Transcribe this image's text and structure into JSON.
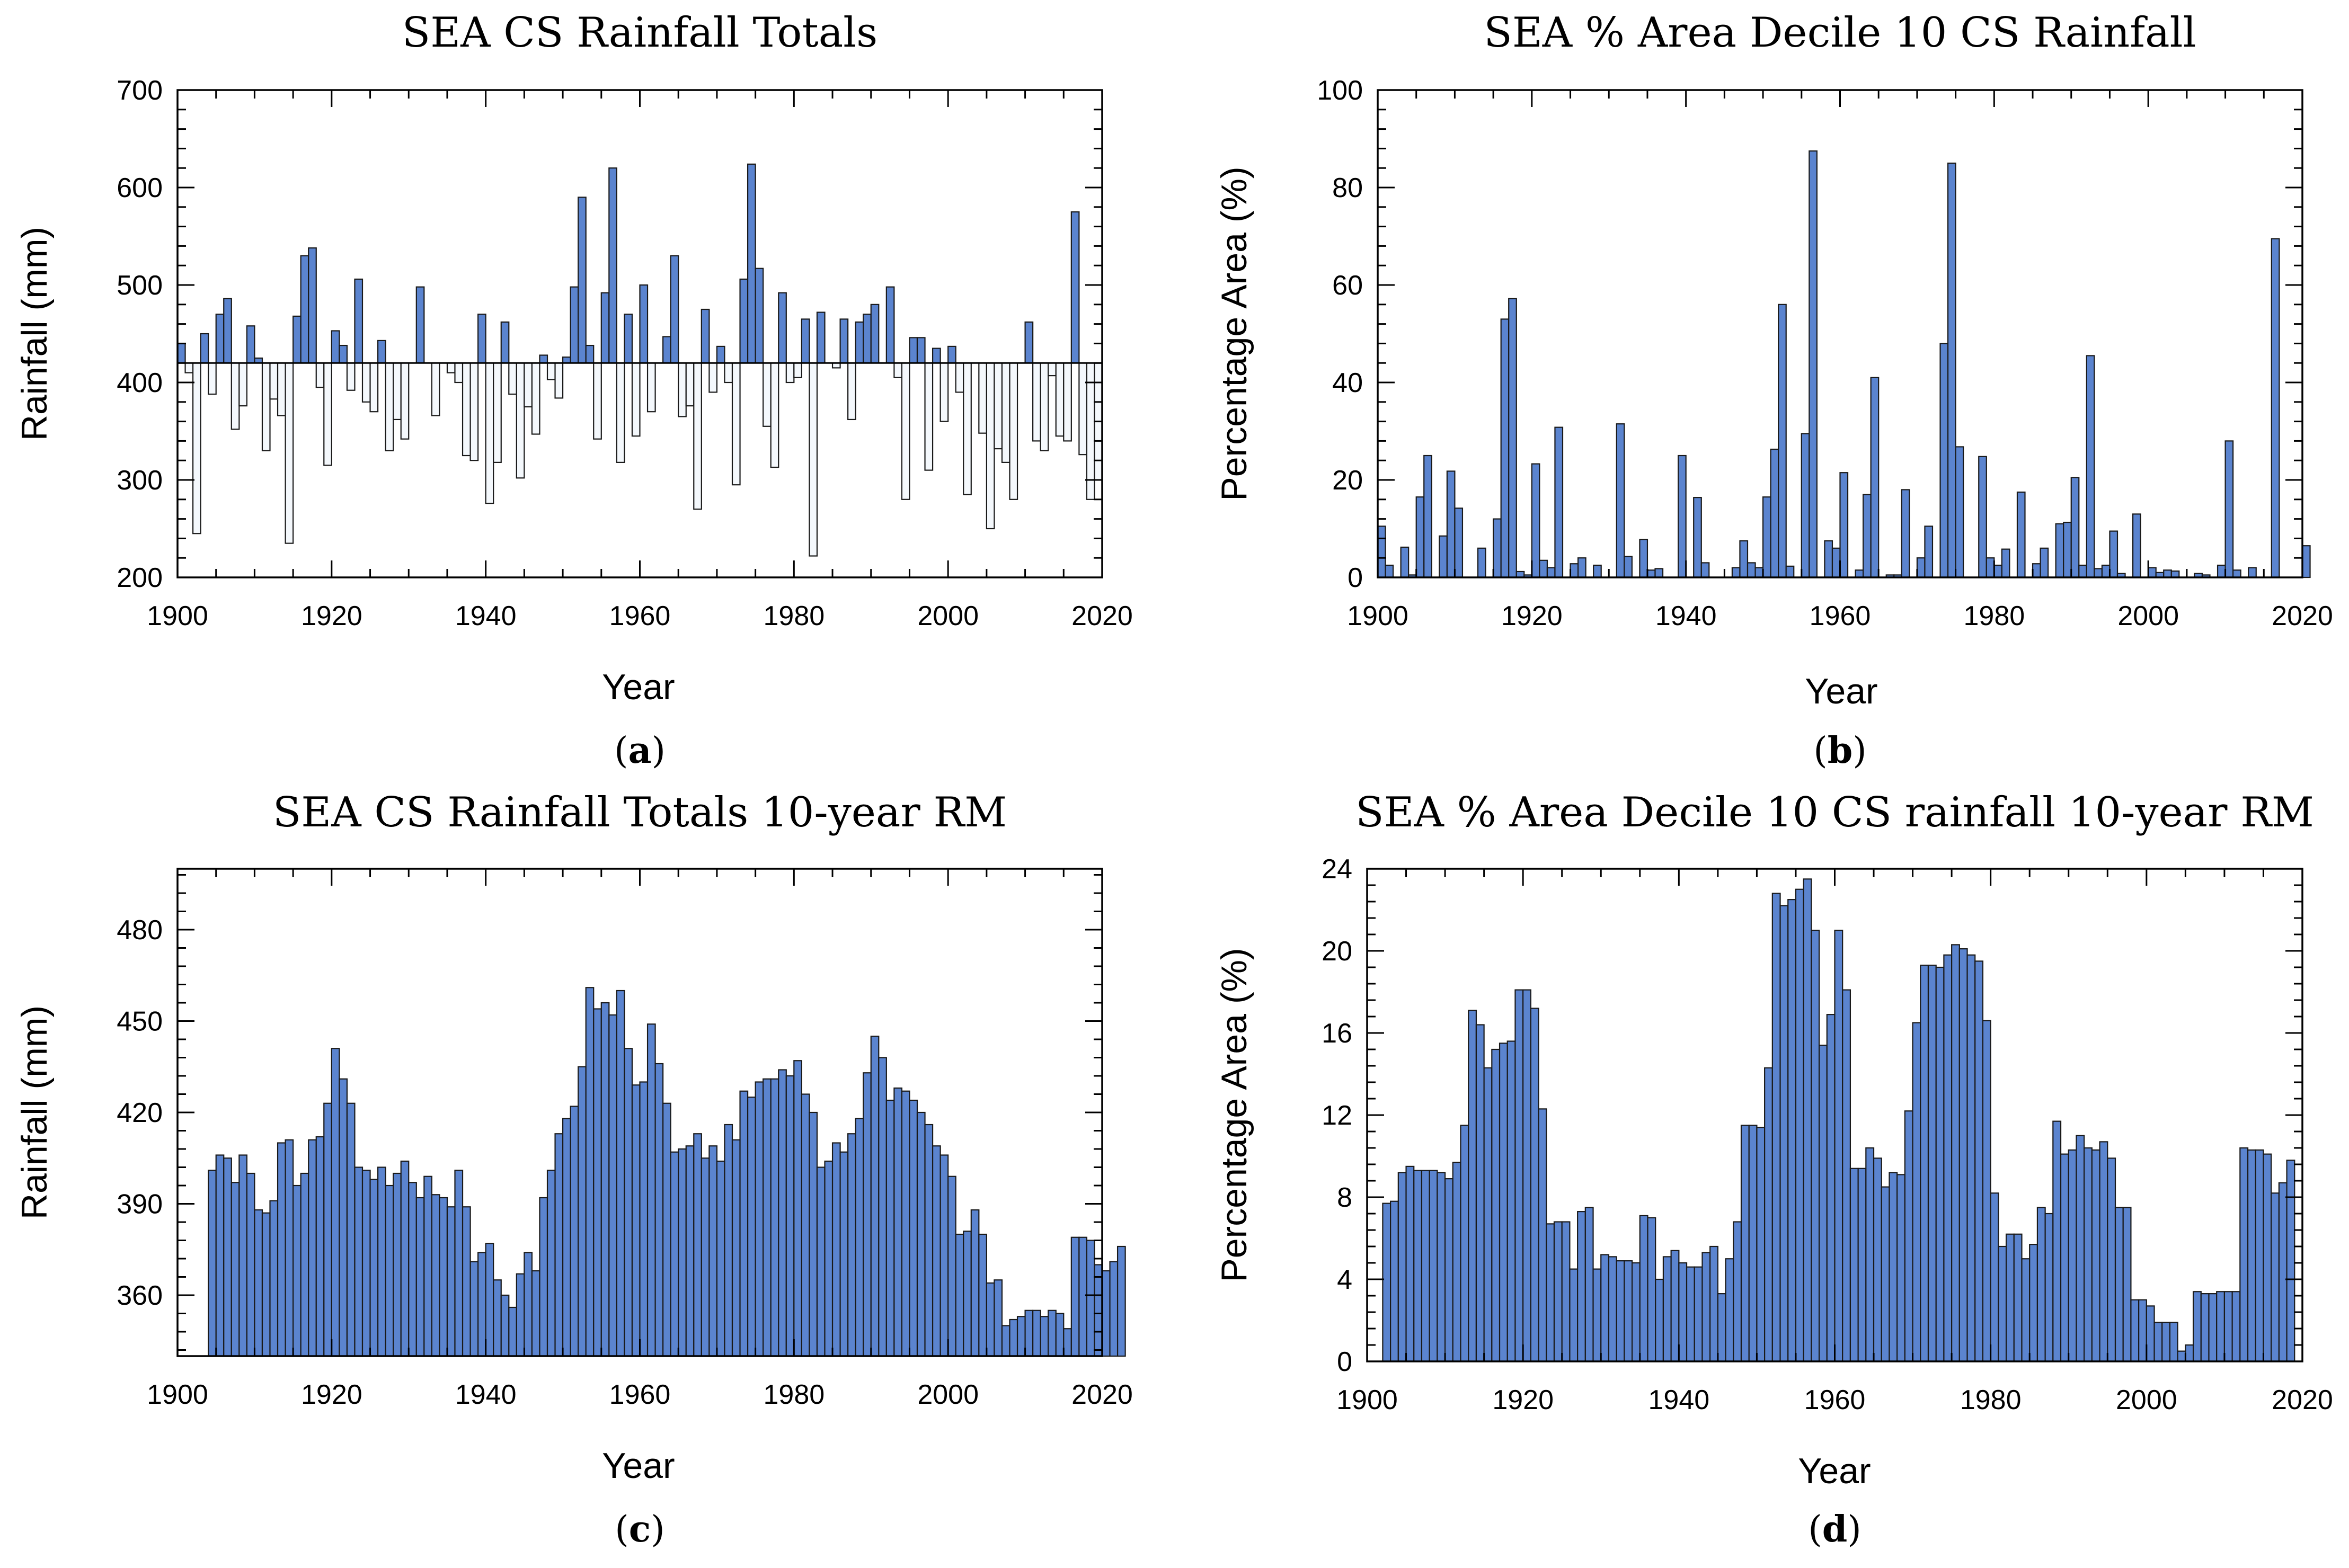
{
  "chart_data": [
    {
      "type": "bar",
      "title": "SEA CS Rainfall Totals",
      "xlabel": "Year",
      "ylabel": "Rainfall (mm)",
      "panel_label": "a",
      "xlim": [
        1900,
        2020
      ],
      "ylim": [
        200,
        700
      ],
      "xticks": [
        "1900",
        "1920",
        "1940",
        "1960",
        "1980",
        "2000",
        "2020"
      ],
      "yticks": [
        "200",
        "300",
        "400",
        "500",
        "600",
        "700"
      ],
      "baseline": 420,
      "above_color": "#5B84CF",
      "below_color": "#F4F8FC",
      "x_start": 1900,
      "values": [
        440,
        410,
        245,
        450,
        388,
        470,
        486,
        352,
        376,
        458,
        425,
        330,
        383,
        366,
        235,
        468,
        530,
        538,
        395,
        315,
        453,
        438,
        392,
        506,
        380,
        370,
        443,
        330,
        362,
        342,
        420,
        498,
        420,
        366,
        420,
        410,
        400,
        325,
        320,
        470,
        276,
        318,
        462,
        388,
        302,
        375,
        347,
        428,
        403,
        384,
        426,
        498,
        590,
        438,
        342,
        492,
        620,
        318,
        470,
        345,
        500,
        370,
        420,
        447,
        530,
        365,
        376,
        270,
        475,
        390,
        437,
        400,
        295,
        506,
        624,
        517,
        355,
        313,
        492,
        400,
        405,
        465,
        222,
        472,
        420,
        415,
        465,
        362,
        462,
        470,
        480,
        420,
        498,
        405,
        280,
        446,
        446,
        310,
        435,
        360,
        437,
        390,
        285,
        420,
        348,
        250,
        332,
        318,
        280,
        420,
        462,
        340,
        330,
        407,
        345,
        340,
        575,
        326,
        280,
        300
      ]
    },
    {
      "type": "bar",
      "title": "SEA % Area Decile 10 CS Rainfall",
      "xlabel": "Year",
      "ylabel": "Percentage Area (%)",
      "panel_label": "b",
      "xlim": [
        1900,
        2020
      ],
      "ylim": [
        0,
        100
      ],
      "xticks": [
        "1900",
        "1920",
        "1940",
        "1960",
        "1980",
        "2000",
        "2020"
      ],
      "yticks": [
        "0",
        "20",
        "40",
        "60",
        "80",
        "100"
      ],
      "bar_color": "#5B84CF",
      "x_start": 1900,
      "values": [
        10.5,
        2.5,
        0,
        6.2,
        0.5,
        16.5,
        25,
        0,
        8.5,
        21.8,
        14.2,
        0,
        0,
        6,
        0,
        12,
        53,
        57.2,
        1.2,
        0.5,
        23.3,
        3.5,
        2,
        30.8,
        0,
        2.8,
        4,
        0,
        2.5,
        0,
        0,
        31.5,
        4.3,
        0,
        7.8,
        1.5,
        1.8,
        0,
        0,
        25,
        0,
        16.4,
        3,
        0,
        0,
        0,
        2,
        7.5,
        3,
        2,
        16.5,
        26.3,
        56,
        2.3,
        0,
        29.5,
        87.5,
        0,
        7.5,
        6,
        21.5,
        0,
        1.5,
        17,
        41,
        0,
        0.5,
        0.5,
        18,
        0,
        4,
        10.5,
        0,
        48,
        85,
        26.8,
        0,
        0,
        24.8,
        4,
        2.5,
        5.8,
        0,
        17.5,
        0,
        2.8,
        6,
        0,
        11,
        11.3,
        20.5,
        2.5,
        45.5,
        1.8,
        2.5,
        9.5,
        0.8,
        0,
        13,
        0,
        2,
        1,
        1.5,
        1.3,
        0,
        0,
        0.8,
        0.5,
        0,
        2.5,
        28,
        1.5,
        0,
        2,
        0,
        0,
        69.5,
        0,
        0,
        0,
        6.5
      ]
    },
    {
      "type": "bar",
      "title": "SEA CS Rainfall Totals 10-year RM",
      "xlabel": "Year",
      "ylabel": "Rainfall (mm)",
      "panel_label": "c",
      "xlim": [
        1900,
        2020
      ],
      "ylim": [
        340,
        500
      ],
      "xticks": [
        "1900",
        "1920",
        "1940",
        "1960",
        "1980",
        "2000",
        "2020"
      ],
      "yticks": [
        "360",
        "390",
        "420",
        "450",
        "480"
      ],
      "bar_color": "#5B84CF",
      "x_start": 1904,
      "values": [
        401,
        406,
        405,
        397,
        406,
        400,
        388,
        387,
        391,
        410,
        411,
        396,
        400,
        411,
        412,
        423,
        441,
        431,
        423,
        402,
        401,
        398,
        402,
        396,
        400,
        404,
        397,
        392,
        399,
        393,
        392,
        389,
        401,
        389,
        371,
        374,
        377,
        365,
        360,
        356,
        367,
        374,
        368,
        392,
        401,
        413,
        418,
        422,
        435,
        461,
        454,
        456,
        452,
        460,
        441,
        429,
        430,
        449,
        436,
        423,
        407,
        408,
        409,
        413,
        405,
        409,
        404,
        416,
        411,
        427,
        425,
        430,
        431,
        431,
        434,
        432,
        437,
        426,
        420,
        402,
        404,
        410,
        407,
        413,
        418,
        433,
        445,
        438,
        424,
        428,
        427,
        424,
        420,
        416,
        409,
        406,
        399,
        380,
        381,
        388,
        380,
        364,
        365,
        350,
        352,
        353,
        355,
        355,
        353,
        355,
        354,
        349,
        379,
        379,
        378,
        370,
        368,
        371,
        376
      ]
    },
    {
      "type": "bar",
      "title": "SEA % Area Decile 10 CS rainfall 10-year RM",
      "xlabel": "Year",
      "ylabel": "Percentage Area (%)",
      "panel_label": "d",
      "xlim": [
        1900,
        2020
      ],
      "ylim": [
        0,
        24
      ],
      "xticks": [
        "1900",
        "1920",
        "1940",
        "1960",
        "1980",
        "2000",
        "2020"
      ],
      "yticks": [
        "0",
        "4",
        "8",
        "12",
        "16",
        "20",
        "24"
      ],
      "bar_color": "#5B84CF",
      "x_start": 1902,
      "values": [
        7.7,
        7.8,
        9.2,
        9.5,
        9.3,
        9.3,
        9.3,
        9.2,
        8.9,
        9.7,
        11.5,
        17.1,
        16.4,
        14.3,
        15.2,
        15.5,
        15.6,
        18.1,
        18.1,
        17.2,
        12.3,
        6.7,
        6.8,
        6.8,
        4.5,
        7.3,
        7.5,
        4.5,
        5.2,
        5.1,
        4.9,
        4.9,
        4.8,
        7.1,
        7.0,
        4.0,
        5.1,
        5.4,
        4.8,
        4.6,
        4.6,
        5.3,
        5.6,
        3.3,
        5.0,
        6.8,
        11.5,
        11.5,
        11.4,
        14.3,
        22.8,
        22.2,
        22.5,
        23.0,
        23.5,
        21.0,
        15.4,
        16.9,
        21.0,
        18.1,
        9.4,
        9.4,
        10.4,
        9.9,
        8.5,
        9.2,
        9.1,
        12.2,
        16.5,
        19.3,
        19.3,
        19.2,
        19.8,
        20.3,
        20.1,
        19.8,
        19.5,
        16.6,
        8.2,
        5.6,
        6.2,
        6.2,
        5.0,
        5.7,
        7.5,
        7.2,
        11.7,
        10.1,
        10.3,
        11.0,
        10.4,
        10.3,
        10.7,
        9.9,
        7.5,
        7.5,
        3.0,
        3.0,
        2.7,
        1.9,
        1.9,
        1.9,
        0.5,
        0.8,
        3.4,
        3.3,
        3.3,
        3.4,
        3.4,
        3.4,
        10.4,
        10.3,
        10.3,
        10.1,
        8.2,
        8.7,
        9.8
      ]
    }
  ]
}
